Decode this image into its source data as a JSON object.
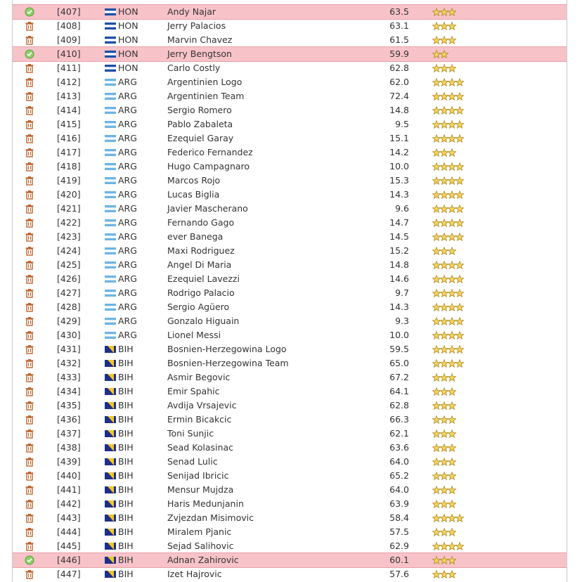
{
  "table": {
    "rows": [
      {
        "id": "[407]",
        "country": "HON",
        "name": "Andy Najar",
        "rating": "63.5",
        "stars": 3,
        "highlight": true
      },
      {
        "id": "[408]",
        "country": "HON",
        "name": "Jerry Palacios",
        "rating": "63.1",
        "stars": 3
      },
      {
        "id": "[409]",
        "country": "HON",
        "name": "Marvin Chavez",
        "rating": "61.5",
        "stars": 3
      },
      {
        "id": "[410]",
        "country": "HON",
        "name": "Jerry Bengtson",
        "rating": "59.9",
        "stars": 2,
        "highlight": true
      },
      {
        "id": "[411]",
        "country": "HON",
        "name": "Carlo Costly",
        "rating": "62.8",
        "stars": 3
      },
      {
        "id": "[412]",
        "country": "ARG",
        "name": "Argentinien Logo",
        "rating": "62.0",
        "stars": 4
      },
      {
        "id": "[413]",
        "country": "ARG",
        "name": "Argentinien Team",
        "rating": "72.4",
        "stars": 4
      },
      {
        "id": "[414]",
        "country": "ARG",
        "name": "Sergio Romero",
        "rating": "14.8",
        "stars": 4
      },
      {
        "id": "[415]",
        "country": "ARG",
        "name": "Pablo Zabaleta",
        "rating": "9.5",
        "stars": 4
      },
      {
        "id": "[416]",
        "country": "ARG",
        "name": "Ezequiel Garay",
        "rating": "15.1",
        "stars": 4
      },
      {
        "id": "[417]",
        "country": "ARG",
        "name": "Federico Fernandez",
        "rating": "14.2",
        "stars": 3
      },
      {
        "id": "[418]",
        "country": "ARG",
        "name": "Hugo Campagnaro",
        "rating": "10.0",
        "stars": 4
      },
      {
        "id": "[419]",
        "country": "ARG",
        "name": "Marcos Rojo",
        "rating": "15.3",
        "stars": 4
      },
      {
        "id": "[420]",
        "country": "ARG",
        "name": "Lucas Biglia",
        "rating": "14.3",
        "stars": 4
      },
      {
        "id": "[421]",
        "country": "ARG",
        "name": "Javier Mascherano",
        "rating": "9.6",
        "stars": 4
      },
      {
        "id": "[422]",
        "country": "ARG",
        "name": "Fernando Gago",
        "rating": "14.7",
        "stars": 4
      },
      {
        "id": "[423]",
        "country": "ARG",
        "name": "ever Banega",
        "rating": "14.5",
        "stars": 4
      },
      {
        "id": "[424]",
        "country": "ARG",
        "name": "Maxi Rodriguez",
        "rating": "15.2",
        "stars": 3
      },
      {
        "id": "[425]",
        "country": "ARG",
        "name": "Angel Di Maria",
        "rating": "14.8",
        "stars": 4
      },
      {
        "id": "[426]",
        "country": "ARG",
        "name": "Ezequiel Lavezzi",
        "rating": "14.6",
        "stars": 4
      },
      {
        "id": "[427]",
        "country": "ARG",
        "name": "Rodrigo Palacio",
        "rating": "9.7",
        "stars": 4
      },
      {
        "id": "[428]",
        "country": "ARG",
        "name": "Sergio Agüero",
        "rating": "14.3",
        "stars": 4
      },
      {
        "id": "[429]",
        "country": "ARG",
        "name": "Gonzalo Higuain",
        "rating": "9.3",
        "stars": 4
      },
      {
        "id": "[430]",
        "country": "ARG",
        "name": "Lionel Messi",
        "rating": "10.0",
        "stars": 4
      },
      {
        "id": "[431]",
        "country": "BIH",
        "name": "Bosnien-Herzegowina Logo",
        "rating": "59.5",
        "stars": 4
      },
      {
        "id": "[432]",
        "country": "BIH",
        "name": "Bosnien-Herzegowina Team",
        "rating": "65.0",
        "stars": 4
      },
      {
        "id": "[433]",
        "country": "BIH",
        "name": "Asmir Begovic",
        "rating": "67.2",
        "stars": 3
      },
      {
        "id": "[434]",
        "country": "BIH",
        "name": "Emir Spahic",
        "rating": "64.1",
        "stars": 3
      },
      {
        "id": "[435]",
        "country": "BIH",
        "name": "Avdija Vrsajevic",
        "rating": "62.8",
        "stars": 3
      },
      {
        "id": "[436]",
        "country": "BIH",
        "name": "Ermin Bicakcic",
        "rating": "66.3",
        "stars": 3
      },
      {
        "id": "[437]",
        "country": "BIH",
        "name": "Toni Sunjic",
        "rating": "62.1",
        "stars": 3
      },
      {
        "id": "[438]",
        "country": "BIH",
        "name": "Sead Kolasinac",
        "rating": "63.6",
        "stars": 3
      },
      {
        "id": "[439]",
        "country": "BIH",
        "name": "Senad Lulic",
        "rating": "64.0",
        "stars": 3
      },
      {
        "id": "[440]",
        "country": "BIH",
        "name": "Senijad Ibricic",
        "rating": "65.2",
        "stars": 3
      },
      {
        "id": "[441]",
        "country": "BIH",
        "name": "Mensur Mujdza",
        "rating": "64.0",
        "stars": 3
      },
      {
        "id": "[442]",
        "country": "BIH",
        "name": "Haris Medunjanin",
        "rating": "63.9",
        "stars": 3
      },
      {
        "id": "[443]",
        "country": "BIH",
        "name": "Zvjezdan Misimovic",
        "rating": "58.4",
        "stars": 4
      },
      {
        "id": "[444]",
        "country": "BIH",
        "name": "Miralem Pjanic",
        "rating": "57.5",
        "stars": 3
      },
      {
        "id": "[445]",
        "country": "BIH",
        "name": "Sejad Salihovic",
        "rating": "62.9",
        "stars": 4
      },
      {
        "id": "[446]",
        "country": "BIH",
        "name": "Adnan Zahirovic",
        "rating": "60.1",
        "stars": 3,
        "highlight": true
      },
      {
        "id": "[447]",
        "country": "BIH",
        "name": "Izet Hajrovic",
        "rating": "57.6",
        "stars": 3
      }
    ]
  }
}
